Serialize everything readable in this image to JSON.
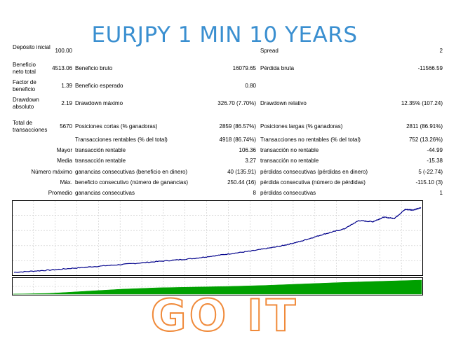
{
  "title": "EURJPY 1 MIN 10 YEARS",
  "banner": "GO IT",
  "stats": {
    "deposit_label": "Depósito inicial",
    "deposit_value": "100.00",
    "spread_label": "Spread",
    "spread_value": "2",
    "net_profit_label": "Beneficio neto total",
    "net_profit_value": "4513.06",
    "gross_profit_label": "Beneficio bruto",
    "gross_profit_value": "16079.65",
    "gross_loss_label": "Pérdida bruta",
    "gross_loss_value": "-11566.59",
    "profit_factor_label": "Factor de beneficio",
    "profit_factor_value": "1.39",
    "expected_payoff_label": "Beneficio esperado",
    "expected_payoff_value": "0.80",
    "abs_drawdown_label": "Drawdown absoluto",
    "abs_drawdown_value": "2.19",
    "max_drawdown_label": "Drawdown máximo",
    "max_drawdown_value": "326.70 (7.70%)",
    "rel_drawdown_label": "Drawdown relativo",
    "rel_drawdown_value": "12.35% (107.24)",
    "total_trades_label": "Total de transacciones",
    "total_trades_value": "5670",
    "short_label": "Posiciones cortas (% ganadoras)",
    "short_value": "2859 (86.57%)",
    "long_label": "Posiciones largas (% ganadoras)",
    "long_value": "2811 (86.91%)",
    "profit_trades_label": "Transacciones rentables (% del total)",
    "profit_trades_value": "4918 (86.74%)",
    "loss_trades_label": "Transacciones no rentables (% del total)",
    "loss_trades_value": "752 (13.26%)",
    "largest_label": "Mayor",
    "largest_profit_label": "transacción rentable",
    "largest_profit_value": "106.36",
    "largest_loss_label": "transacción no rentable",
    "largest_loss_value": "-44.99",
    "average_label": "Media",
    "average_profit_label": "transacción rentable",
    "average_profit_value": "3.27",
    "average_loss_label": "transacción no rentable",
    "average_loss_value": "-15.38",
    "max_consec_label": "Número máximo",
    "max_consec_wins_label": "ganancias consecutivas (beneficio en dinero)",
    "max_consec_wins_value": "40 (135.91)",
    "max_consec_losses_label": "pérdidas consecutivas (pérdidas en dinero)",
    "max_consec_losses_value": "5 (-22.74)",
    "maximal_label": "Máx.",
    "maximal_profit_label": "beneficio consecutivo (número de ganancias)",
    "maximal_profit_value": "250.44 (16)",
    "maximal_loss_label": "pérdida consecutiva (número de pérdidas)",
    "maximal_loss_value": "-115.10 (3)",
    "avg_consec_label": "Promedio",
    "avg_consec_wins_label": "ganancias consecutivas",
    "avg_consec_wins_value": "8",
    "avg_consec_losses_label": "pérdidas consecutivas",
    "avg_consec_losses_value": "1"
  },
  "colors": {
    "title": "#3a8fd0",
    "balance_line": "#00008b",
    "volume": "#00a000",
    "banner_outline": "#f08a3a",
    "grid": "#c8c8c8"
  },
  "chart_data": [
    {
      "type": "line",
      "title": "",
      "xlabel": "",
      "ylabel": "",
      "grid": true,
      "x": [
        0,
        500,
        1000,
        1500,
        2000,
        2500,
        2900,
        3300,
        3700,
        4000,
        4300,
        4600,
        4800,
        5000,
        5150,
        5300,
        5450,
        5560,
        5670
      ],
      "series": [
        {
          "values": [
            100,
            260,
            460,
            650,
            860,
            1070,
            1330,
            1590,
            1920,
            2280,
            2750,
            3140,
            3720,
            3650,
            3960,
            3880,
            4500,
            4470,
            4613
          ]
        }
      ],
      "ylim": [
        0,
        5000
      ]
    },
    {
      "type": "area",
      "title": "",
      "grid": true,
      "x": [
        0,
        500,
        1000,
        1500,
        2000,
        2500,
        3000,
        3500,
        4000,
        4500,
        5000,
        5670
      ],
      "series": [
        {
          "values": [
            0,
            0.05,
            0.2,
            0.35,
            0.45,
            0.5,
            0.55,
            0.62,
            0.72,
            0.82,
            0.9,
            1.0
          ]
        }
      ],
      "ylim": [
        0,
        1.1
      ]
    }
  ]
}
